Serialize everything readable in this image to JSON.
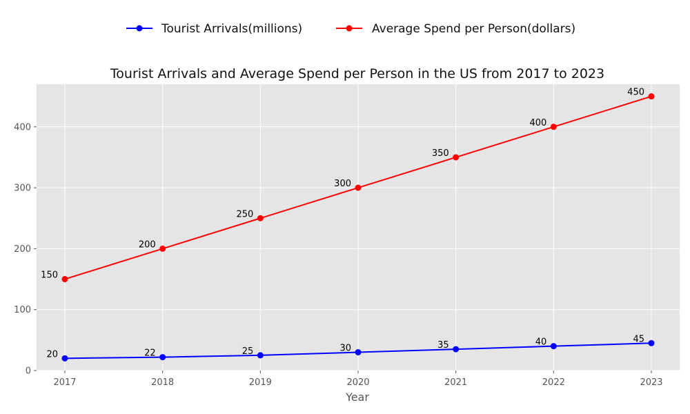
{
  "chart_data": {
    "type": "line",
    "title": "Tourist Arrivals and Average Spend per Person in the US from 2017 to 2023",
    "xlabel": "Year",
    "ylabel": "",
    "x": [
      "2017",
      "2018",
      "2019",
      "2020",
      "2021",
      "2022",
      "2023"
    ],
    "ylim": [
      0,
      470
    ],
    "yticks": [
      0,
      100,
      200,
      300,
      400
    ],
    "grid": true,
    "legend_position": "top-center",
    "series": [
      {
        "name": "Tourist Arrivals(millions)",
        "color": "#0000ff",
        "values": [
          20,
          22,
          25,
          30,
          35,
          40,
          45
        ]
      },
      {
        "name": "Average Spend per Person(dollars)",
        "color": "#ff0000",
        "values": [
          150,
          200,
          250,
          300,
          350,
          400,
          450
        ]
      }
    ]
  }
}
